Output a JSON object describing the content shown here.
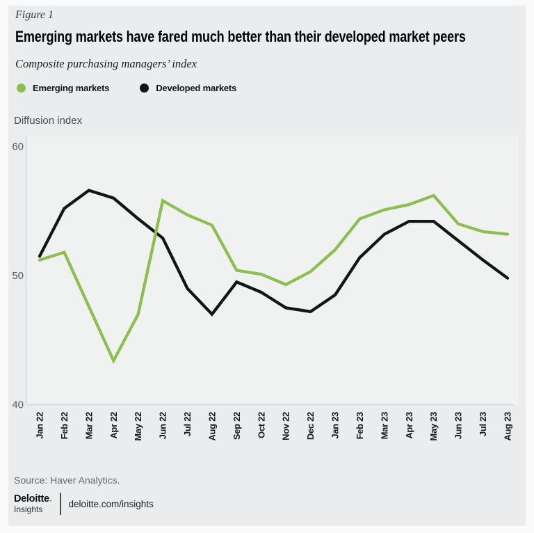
{
  "figure_label": "Figure 1",
  "title": "Emerging markets have fared much better than their developed market peers",
  "subtitle": "Composite purchasing managers’ index",
  "legend": [
    {
      "label": "Emerging markets",
      "color": "#8cbf4c"
    },
    {
      "label": "Developed markets",
      "color": "#141414"
    }
  ],
  "y_axis_title": "Diffusion index",
  "source_note": "Source: Haver Analytics.",
  "footer": {
    "brand": "Deloitte",
    "brand_period": ".",
    "brand_sub": "Insights",
    "link": "deloitte.com/insights",
    "brand_period_color": "#86bc25"
  },
  "chart_data": {
    "type": "line",
    "title": "Composite purchasing managers’ index",
    "xlabel": "",
    "ylabel": "Diffusion index",
    "ylim": [
      40,
      60
    ],
    "yticks": [
      60,
      50,
      40
    ],
    "grid": false,
    "legend_position": "top-left",
    "categories": [
      "Jan 22",
      "Feb 22",
      "Mar 22",
      "Apr 22",
      "May 22",
      "Jun 22",
      "Jul 22",
      "Aug 22",
      "Sep 22",
      "Oct 22",
      "Nov 22",
      "Dec 22",
      "Jan 23",
      "Feb 23",
      "Mar 23",
      "Apr 23",
      "May 23",
      "Jun 23",
      "Jul 23",
      "Aug 23"
    ],
    "series": [
      {
        "name": "Emerging markets",
        "color": "#8cbf4c",
        "values": [
          51.2,
          51.8,
          47.6,
          43.4,
          47.0,
          55.8,
          54.7,
          53.9,
          50.4,
          50.1,
          49.3,
          50.3,
          52.0,
          54.4,
          55.1,
          55.5,
          56.2,
          54.0,
          53.4,
          53.2
        ]
      },
      {
        "name": "Developed markets",
        "color": "#141414",
        "values": [
          51.5,
          55.2,
          56.6,
          56.0,
          54.4,
          52.9,
          49.0,
          47.0,
          49.5,
          48.7,
          47.5,
          47.2,
          48.5,
          51.4,
          53.2,
          54.2,
          54.2,
          52.7,
          51.2,
          49.8
        ]
      }
    ]
  }
}
